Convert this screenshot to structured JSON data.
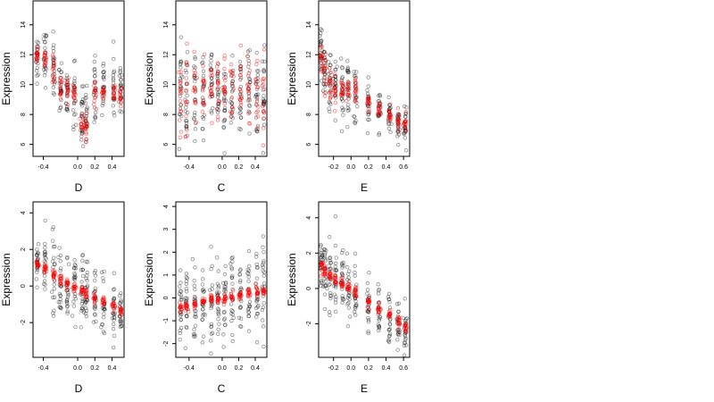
{
  "chart_data": [
    {
      "type": "scatter",
      "xlabel": "D",
      "ylabel": "Expression",
      "xlim": [
        -0.52,
        0.54
      ],
      "ylim": [
        5.2,
        15.6
      ],
      "xticks": [
        -0.4,
        0.0,
        0.2,
        0.4
      ],
      "xtick_labels": [
        "-0.4",
        "0.0",
        "0.2",
        "0.4"
      ],
      "yticks": [
        6,
        8,
        10,
        12,
        14
      ],
      "ytick_labels": [
        "6",
        "8",
        "10",
        "12",
        "14"
      ],
      "groups": [
        {
          "x": -0.47,
          "black_mean": 11.9,
          "black_sd": 0.7,
          "red_mean": 11.9,
          "red_sd": 0.3
        },
        {
          "x": -0.38,
          "black_mean": 11.8,
          "black_sd": 1.0,
          "red_mean": 11.7,
          "red_sd": 0.3
        },
        {
          "x": -0.28,
          "black_mean": 10.8,
          "black_sd": 1.1,
          "red_mean": 10.9,
          "red_sd": 0.5
        },
        {
          "x": -0.2,
          "black_mean": 9.8,
          "black_sd": 1.1,
          "red_mean": 9.9,
          "red_sd": 0.5
        },
        {
          "x": -0.12,
          "black_mean": 9.6,
          "black_sd": 1.0,
          "red_mean": 9.7,
          "red_sd": 0.5
        },
        {
          "x": -0.04,
          "black_mean": 9.3,
          "black_sd": 1.0,
          "red_mean": 9.5,
          "red_sd": 0.4
        },
        {
          "x": 0.05,
          "black_mean": 7.8,
          "black_sd": 1.2,
          "red_mean": 7.6,
          "red_sd": 0.5
        },
        {
          "x": 0.1,
          "black_mean": 7.6,
          "black_sd": 1.0,
          "red_mean": 7.2,
          "red_sd": 0.4
        },
        {
          "x": 0.2,
          "black_mean": 9.6,
          "black_sd": 1.0,
          "red_mean": 9.4,
          "red_sd": 0.4
        },
        {
          "x": 0.3,
          "black_mean": 9.8,
          "black_sd": 1.0,
          "red_mean": 9.5,
          "red_sd": 0.4
        },
        {
          "x": 0.42,
          "black_mean": 9.6,
          "black_sd": 1.0,
          "red_mean": 9.3,
          "red_sd": 0.4
        },
        {
          "x": 0.5,
          "black_mean": 9.4,
          "black_sd": 0.8,
          "red_mean": 9.2,
          "red_sd": 0.4
        }
      ]
    },
    {
      "type": "scatter",
      "xlabel": "C",
      "ylabel": "Expression",
      "xlim": [
        -0.56,
        0.54
      ],
      "ylim": [
        5.2,
        15.6
      ],
      "xticks": [
        -0.4,
        0.0,
        0.2,
        0.4
      ],
      "xtick_labels": [
        "-0.4",
        "0.0",
        "0.2",
        "0.4"
      ],
      "yticks": [
        6,
        8,
        10,
        12,
        14
      ],
      "ytick_labels": [
        "6",
        "8",
        "10",
        "12",
        "14"
      ],
      "groups": [
        {
          "x": -0.5,
          "black_mean": 9.5,
          "black_sd": 1.5,
          "red_mean": 9.2,
          "red_sd": 1.6
        },
        {
          "x": -0.43,
          "black_mean": 9.3,
          "black_sd": 1.5,
          "red_mean": 9.4,
          "red_sd": 1.4
        },
        {
          "x": -0.33,
          "black_mean": 9.6,
          "black_sd": 1.4,
          "red_mean": 9.5,
          "red_sd": 1.2
        },
        {
          "x": -0.23,
          "black_mean": 9.4,
          "black_sd": 1.4,
          "red_mean": 9.6,
          "red_sd": 1.2
        },
        {
          "x": -0.13,
          "black_mean": 9.7,
          "black_sd": 1.4,
          "red_mean": 9.6,
          "red_sd": 1.2
        },
        {
          "x": -0.05,
          "black_mean": 9.5,
          "black_sd": 1.4,
          "red_mean": 9.7,
          "red_sd": 1.4
        },
        {
          "x": 0.03,
          "black_mean": 9.4,
          "black_sd": 1.4,
          "red_mean": 9.5,
          "red_sd": 1.3
        },
        {
          "x": 0.12,
          "black_mean": 9.6,
          "black_sd": 1.3,
          "red_mean": 9.6,
          "red_sd": 1.2
        },
        {
          "x": 0.22,
          "black_mean": 9.7,
          "black_sd": 1.4,
          "red_mean": 9.8,
          "red_sd": 1.2
        },
        {
          "x": 0.32,
          "black_mean": 9.6,
          "black_sd": 1.5,
          "red_mean": 9.6,
          "red_sd": 1.2
        },
        {
          "x": 0.42,
          "black_mean": 9.3,
          "black_sd": 1.6,
          "red_mean": 9.5,
          "red_sd": 1.5
        },
        {
          "x": 0.5,
          "black_mean": 9.2,
          "black_sd": 1.7,
          "red_mean": 8.5,
          "red_sd": 1.8
        }
      ]
    },
    {
      "type": "scatter",
      "xlabel": "E",
      "ylabel": "Expression",
      "xlim": [
        -0.37,
        0.67
      ],
      "ylim": [
        5.2,
        15.6
      ],
      "xticks": [
        -0.2,
        0.0,
        0.2,
        0.4,
        0.6
      ],
      "xtick_labels": [
        "-0.2",
        "0.0",
        "0.2",
        "0.4",
        "0.6"
      ],
      "yticks": [
        6,
        8,
        10,
        12,
        14
      ],
      "ytick_labels": [
        "6",
        "8",
        "10",
        "12",
        "14"
      ],
      "groups": [
        {
          "x": -0.34,
          "black_mean": 11.8,
          "black_sd": 1.0,
          "red_mean": 11.7,
          "red_sd": 0.5
        },
        {
          "x": -0.3,
          "black_mean": 11.0,
          "black_sd": 1.1,
          "red_mean": 10.8,
          "red_sd": 0.6
        },
        {
          "x": -0.24,
          "black_mean": 10.3,
          "black_sd": 1.0,
          "red_mean": 10.0,
          "red_sd": 0.5
        },
        {
          "x": -0.18,
          "black_mean": 10.0,
          "black_sd": 1.0,
          "red_mean": 9.8,
          "red_sd": 0.5
        },
        {
          "x": -0.1,
          "black_mean": 9.5,
          "black_sd": 1.0,
          "red_mean": 9.5,
          "red_sd": 0.4
        },
        {
          "x": -0.03,
          "black_mean": 9.7,
          "black_sd": 0.9,
          "red_mean": 9.6,
          "red_sd": 0.4
        },
        {
          "x": 0.05,
          "black_mean": 9.6,
          "black_sd": 1.0,
          "red_mean": 9.5,
          "red_sd": 0.4
        },
        {
          "x": 0.2,
          "black_mean": 8.8,
          "black_sd": 0.7,
          "red_mean": 8.8,
          "red_sd": 0.3
        },
        {
          "x": 0.32,
          "black_mean": 8.3,
          "black_sd": 0.7,
          "red_mean": 8.4,
          "red_sd": 0.3
        },
        {
          "x": 0.44,
          "black_mean": 7.8,
          "black_sd": 0.6,
          "red_mean": 7.9,
          "red_sd": 0.3
        },
        {
          "x": 0.54,
          "black_mean": 7.4,
          "black_sd": 0.6,
          "red_mean": 7.6,
          "red_sd": 0.3
        },
        {
          "x": 0.62,
          "black_mean": 7.1,
          "black_sd": 0.6,
          "red_mean": 7.3,
          "red_sd": 0.3
        }
      ]
    },
    {
      "type": "scatter",
      "xlabel": "D",
      "ylabel": "Expression",
      "xlim": [
        -0.52,
        0.54
      ],
      "ylim": [
        -3.9,
        4.6
      ],
      "xticks": [
        -0.4,
        0.0,
        0.2,
        0.4
      ],
      "xtick_labels": [
        "-0.4",
        "0.0",
        "0.2",
        "0.4"
      ],
      "yticks": [
        -2,
        0,
        2,
        4
      ],
      "ytick_labels": [
        "-2",
        "0",
        "2",
        "4"
      ],
      "groups": [
        {
          "x": -0.47,
          "black_mean": 1.2,
          "black_sd": 0.6,
          "red_mean": 1.2,
          "red_sd": 0.15
        },
        {
          "x": -0.38,
          "black_mean": 1.0,
          "black_sd": 1.0,
          "red_mean": 0.95,
          "red_sd": 0.15
        },
        {
          "x": -0.28,
          "black_mean": 0.6,
          "black_sd": 1.0,
          "red_mean": 0.6,
          "red_sd": 0.15
        },
        {
          "x": -0.2,
          "black_mean": 0.3,
          "black_sd": 1.0,
          "red_mean": 0.35,
          "red_sd": 0.15
        },
        {
          "x": -0.12,
          "black_mean": 0.0,
          "black_sd": 1.0,
          "red_mean": 0.15,
          "red_sd": 0.15
        },
        {
          "x": -0.04,
          "black_mean": -0.1,
          "black_sd": 1.0,
          "red_mean": -0.05,
          "red_sd": 0.15
        },
        {
          "x": 0.05,
          "black_mean": -0.4,
          "black_sd": 1.0,
          "red_mean": -0.3,
          "red_sd": 0.15
        },
        {
          "x": 0.1,
          "black_mean": -0.5,
          "black_sd": 0.9,
          "red_mean": -0.45,
          "red_sd": 0.15
        },
        {
          "x": 0.2,
          "black_mean": -0.7,
          "black_sd": 0.9,
          "red_mean": -0.65,
          "red_sd": 0.15
        },
        {
          "x": 0.3,
          "black_mean": -0.9,
          "black_sd": 0.9,
          "red_mean": -0.85,
          "red_sd": 0.15
        },
        {
          "x": 0.42,
          "black_mean": -1.2,
          "black_sd": 0.9,
          "red_mean": -1.1,
          "red_sd": 0.15
        },
        {
          "x": 0.5,
          "black_mean": -1.4,
          "black_sd": 0.8,
          "red_mean": -1.3,
          "red_sd": 0.15
        }
      ]
    },
    {
      "type": "scatter",
      "xlabel": "C",
      "ylabel": "Expression",
      "xlim": [
        -0.56,
        0.54
      ],
      "ylim": [
        -2.6,
        4.2
      ],
      "xticks": [
        -0.4,
        0.0,
        0.2,
        0.4
      ],
      "xtick_labels": [
        "-0.4",
        "0.0",
        "0.2",
        "0.4"
      ],
      "yticks": [
        -2,
        -1,
        0,
        1,
        2,
        3,
        4
      ],
      "ytick_labels": [
        "-2",
        "-1",
        "0",
        "1",
        "2",
        "3",
        "4"
      ],
      "groups": [
        {
          "x": -0.5,
          "black_mean": -0.3,
          "black_sd": 0.9,
          "red_mean": -0.4,
          "red_sd": 0.1
        },
        {
          "x": -0.43,
          "black_mean": -0.3,
          "black_sd": 0.9,
          "red_mean": -0.4,
          "red_sd": 0.1
        },
        {
          "x": -0.33,
          "black_mean": -0.2,
          "black_sd": 0.9,
          "red_mean": -0.3,
          "red_sd": 0.1
        },
        {
          "x": -0.23,
          "black_mean": 0.0,
          "black_sd": 0.9,
          "red_mean": -0.15,
          "red_sd": 0.1
        },
        {
          "x": -0.13,
          "black_mean": 0.0,
          "black_sd": 0.9,
          "red_mean": -0.05,
          "red_sd": 0.1
        },
        {
          "x": -0.05,
          "black_mean": -0.2,
          "black_sd": 0.9,
          "red_mean": -0.05,
          "red_sd": 0.1
        },
        {
          "x": 0.03,
          "black_mean": 0.0,
          "black_sd": 0.9,
          "red_mean": 0.0,
          "red_sd": 0.1
        },
        {
          "x": 0.12,
          "black_mean": 0.1,
          "black_sd": 0.9,
          "red_mean": 0.05,
          "red_sd": 0.1
        },
        {
          "x": 0.22,
          "black_mean": 0.1,
          "black_sd": 0.9,
          "red_mean": 0.1,
          "red_sd": 0.1
        },
        {
          "x": 0.32,
          "black_mean": 0.2,
          "black_sd": 0.9,
          "red_mean": 0.2,
          "red_sd": 0.1
        },
        {
          "x": 0.42,
          "black_mean": 0.3,
          "black_sd": 1.0,
          "red_mean": 0.25,
          "red_sd": 0.1
        },
        {
          "x": 0.5,
          "black_mean": 0.4,
          "black_sd": 1.0,
          "red_mean": 0.3,
          "red_sd": 0.1
        }
      ]
    },
    {
      "type": "scatter",
      "xlabel": "E",
      "ylabel": "Expression",
      "xlim": [
        -0.37,
        0.67
      ],
      "ylim": [
        -3.9,
        4.9
      ],
      "xticks": [
        -0.2,
        0.0,
        0.2,
        0.4,
        0.6
      ],
      "xtick_labels": [
        "-0.2",
        "0.0",
        "0.2",
        "0.4",
        "0.6"
      ],
      "yticks": [
        -2,
        0,
        2,
        4
      ],
      "ytick_labels": [
        "-2",
        "0",
        "2",
        "4"
      ],
      "groups": [
        {
          "x": -0.34,
          "black_mean": 1.4,
          "black_sd": 1.0,
          "red_mean": 1.3,
          "red_sd": 0.2
        },
        {
          "x": -0.3,
          "black_mean": 1.0,
          "black_sd": 1.0,
          "red_mean": 1.0,
          "red_sd": 0.2
        },
        {
          "x": -0.24,
          "black_mean": 0.8,
          "black_sd": 1.0,
          "red_mean": 0.7,
          "red_sd": 0.15
        },
        {
          "x": -0.18,
          "black_mean": 0.5,
          "black_sd": 1.0,
          "red_mean": 0.5,
          "red_sd": 0.15
        },
        {
          "x": -0.1,
          "black_mean": 0.2,
          "black_sd": 1.0,
          "red_mean": 0.25,
          "red_sd": 0.15
        },
        {
          "x": -0.03,
          "black_mean": 0.1,
          "black_sd": 1.0,
          "red_mean": 0.05,
          "red_sd": 0.15
        },
        {
          "x": 0.05,
          "black_mean": -0.2,
          "black_sd": 1.0,
          "red_mean": -0.2,
          "red_sd": 0.15
        },
        {
          "x": 0.2,
          "black_mean": -0.9,
          "black_sd": 0.8,
          "red_mean": -0.75,
          "red_sd": 0.15
        },
        {
          "x": 0.32,
          "black_mean": -1.2,
          "black_sd": 0.8,
          "red_mean": -1.15,
          "red_sd": 0.15
        },
        {
          "x": 0.44,
          "black_mean": -1.6,
          "black_sd": 0.8,
          "red_mean": -1.5,
          "red_sd": 0.15
        },
        {
          "x": 0.54,
          "black_mean": -1.9,
          "black_sd": 0.8,
          "red_mean": -1.85,
          "red_sd": 0.15
        },
        {
          "x": 0.62,
          "black_mean": -2.3,
          "black_sd": 0.7,
          "red_mean": -2.2,
          "red_sd": 0.15
        }
      ]
    }
  ]
}
